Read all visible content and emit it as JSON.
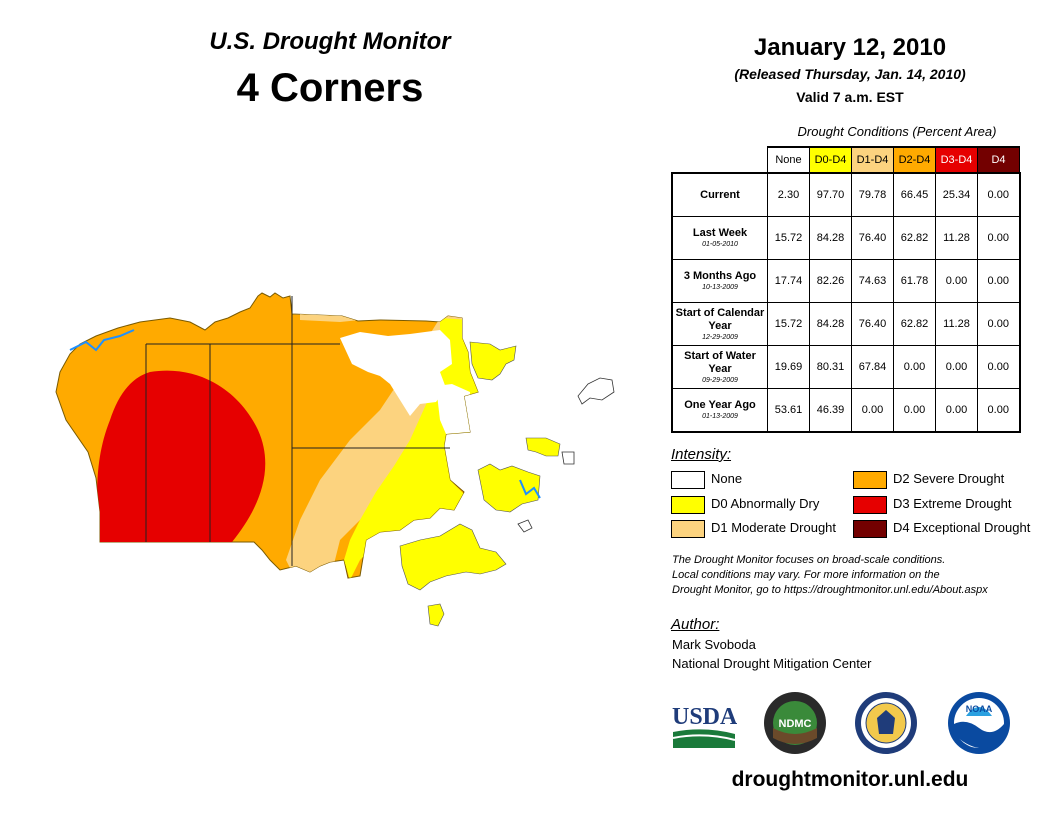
{
  "header": {
    "monitor_title": "U.S. Drought Monitor",
    "region": "4 Corners",
    "date": "January 12, 2010",
    "released": "(Released Thursday, Jan. 14, 2010)",
    "valid": "Valid 7 a.m. EST"
  },
  "conditions": {
    "title": "Drought Conditions (Percent Area)",
    "columns": [
      "None",
      "D0-D4",
      "D1-D4",
      "D2-D4",
      "D3-D4",
      "D4"
    ],
    "rows": [
      {
        "label": "Current",
        "date": "",
        "values": [
          "2.30",
          "97.70",
          "79.78",
          "66.45",
          "25.34",
          "0.00"
        ]
      },
      {
        "label": "Last Week",
        "date": "01-05-2010",
        "values": [
          "15.72",
          "84.28",
          "76.40",
          "62.82",
          "11.28",
          "0.00"
        ]
      },
      {
        "label": "3 Months Ago",
        "date": "10-13-2009",
        "values": [
          "17.74",
          "82.26",
          "74.63",
          "61.78",
          "0.00",
          "0.00"
        ]
      },
      {
        "label": "Start of Calendar Year",
        "date": "12-29-2009",
        "values": [
          "15.72",
          "84.28",
          "76.40",
          "62.82",
          "11.28",
          "0.00"
        ]
      },
      {
        "label": "Start of Water Year",
        "date": "09-29-2009",
        "values": [
          "19.69",
          "80.31",
          "67.84",
          "0.00",
          "0.00",
          "0.00"
        ]
      },
      {
        "label": "One Year Ago",
        "date": "01-13-2009",
        "values": [
          "53.61",
          "46.39",
          "0.00",
          "0.00",
          "0.00",
          "0.00"
        ]
      }
    ]
  },
  "intensity": {
    "label": "Intensity:",
    "items": [
      {
        "label": "None",
        "color": "#ffffff"
      },
      {
        "label": "D0 Abnormally Dry",
        "color": "#ffff00"
      },
      {
        "label": "D1 Moderate Drought",
        "color": "#fcd37f"
      },
      {
        "label": "D2 Severe Drought",
        "color": "#ffaa00"
      },
      {
        "label": "D3 Extreme Drought",
        "color": "#e60000"
      },
      {
        "label": "D4 Exceptional Drought",
        "color": "#730000"
      }
    ]
  },
  "note": {
    "line1": "The Drought Monitor focuses on broad-scale conditions.",
    "line2": "Local conditions may vary. For more information on the",
    "line3": "Drought Monitor, go to https://droughtmonitor.unl.edu/About.aspx"
  },
  "author": {
    "label": "Author:",
    "name": "Mark Svoboda",
    "org": "National Drought Mitigation Center"
  },
  "logos": {
    "usda": "USDA",
    "ndmc": "NDMC",
    "noaa": "NOAA"
  },
  "website": "droughtmonitor.unl.edu",
  "colors": {
    "none": "#ffffff",
    "d0": "#ffff00",
    "d1": "#fcd37f",
    "d2": "#ffaa00",
    "d3": "#e60000",
    "d4": "#730000",
    "water": "#1e90ff"
  }
}
